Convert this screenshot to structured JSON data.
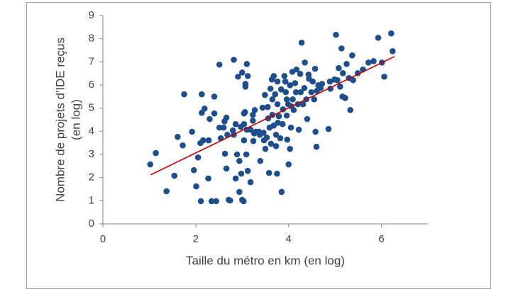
{
  "chart_data": {
    "type": "scatter",
    "xlabel": "Taille du métro en km (en log)",
    "ylabel": [
      "Nombre de projets d'IDE reçus",
      "(en log)"
    ],
    "xlim": [
      0,
      7
    ],
    "xticks": [
      0,
      2,
      4,
      6
    ],
    "ylim": [
      0,
      9
    ],
    "yticks": [
      0,
      1,
      2,
      3,
      4,
      5,
      6,
      7,
      8,
      9
    ],
    "grid": false,
    "color": "#1f4e8c",
    "x": [
      1.02,
      1.14,
      1.37,
      1.54,
      1.61,
      1.72,
      1.75,
      1.92,
      1.96,
      2.01,
      2.05,
      2.11,
      2.13,
      2.13,
      2.19,
      2.1,
      2.16,
      2.28,
      2.27,
      2.34,
      2.4,
      2.3,
      2.4,
      2.44,
      2.51,
      2.51,
      2.54,
      2.6,
      2.62,
      2.63,
      2.66,
      2.66,
      2.68,
      2.71,
      2.74,
      2.8,
      2.82,
      2.82,
      2.86,
      2.86,
      2.89,
      2.91,
      2.94,
      2.94,
      2.97,
      2.98,
      3.0,
      3.0,
      3.03,
      3.04,
      3.04,
      3.04,
      3.06,
      3.07,
      3.07,
      3.1,
      3.12,
      3.09,
      3.1,
      3.12,
      3.18,
      3.18,
      3.23,
      3.23,
      3.24,
      3.26,
      3.27,
      3.3,
      3.36,
      3.38,
      3.39,
      3.44,
      3.46,
      3.47,
      3.49,
      3.5,
      3.53,
      3.55,
      3.56,
      3.58,
      3.59,
      3.61,
      3.62,
      3.64,
      3.65,
      3.65,
      3.68,
      3.68,
      3.71,
      3.73,
      3.73,
      3.75,
      3.76,
      3.76,
      3.77,
      3.79,
      3.82,
      3.84,
      3.85,
      3.87,
      3.88,
      3.91,
      3.93,
      3.94,
      3.96,
      3.96,
      3.97,
      3.99,
      4.0,
      4.03,
      4.03,
      4.05,
      4.06,
      4.08,
      4.09,
      4.11,
      4.14,
      4.16,
      4.17,
      4.2,
      4.22,
      4.25,
      4.26,
      4.28,
      4.31,
      4.34,
      4.35,
      4.38,
      4.4,
      4.43,
      4.44,
      4.49,
      4.52,
      4.55,
      4.57,
      4.58,
      4.6,
      4.61,
      4.64,
      4.69,
      4.72,
      4.86,
      4.89,
      4.9,
      4.99,
      5.02,
      5.05,
      5.08,
      5.11,
      5.16,
      5.17,
      5.22,
      5.14,
      5.25,
      5.3,
      5.33,
      5.37,
      5.39,
      5.49,
      5.6,
      5.72,
      5.83,
      5.93,
      6.01,
      6.06,
      6.21,
      6.24
    ],
    "y": [
      2.57,
      3.06,
      1.41,
      2.08,
      3.76,
      3.39,
      5.6,
      3.98,
      2.32,
      1.62,
      2.87,
      0.98,
      5.6,
      4.8,
      4.98,
      3.49,
      3.61,
      3.61,
      1.96,
      0.98,
      5.5,
      4.53,
      4.77,
      0.98,
      6.88,
      4.16,
      3.7,
      4.16,
      4.43,
      3.03,
      4.59,
      2.39,
      3.85,
      1.04,
      1.01,
      4.04,
      3.85,
      7.09,
      4.31,
      1.96,
      3.0,
      6.36,
      2.72,
      1.38,
      4.19,
      2.17,
      1.04,
      6.54,
      0.98,
      3.61,
      4.31,
      4.77,
      4.83,
      5.93,
      6.05,
      6.91,
      6.39,
      3.0,
      4.07,
      2.29,
      1.8,
      4.07,
      4.71,
      4.46,
      3.58,
      3.91,
      4.92,
      3.98,
      3.98,
      3.85,
      2.72,
      5.02,
      3.94,
      3.61,
      5.57,
      3.24,
      3.73,
      5.05,
      4.56,
      2.2,
      4.16,
      5.84,
      3.46,
      6.24,
      5.38,
      4.71,
      4.25,
      6.39,
      5.6,
      3.85,
      3.36,
      2.17,
      6.15,
      5.17,
      4.37,
      4.65,
      3.7,
      5.81,
      1.38,
      4.31,
      4.95,
      6.39,
      6.15,
      5.69,
      5.38,
      4.68,
      3.64,
      5.17,
      2.57,
      5.99,
      3.24,
      4.16,
      5.08,
      6.57,
      5.38,
      4.92,
      6.08,
      5.69,
      6.67,
      5.17,
      4.07,
      6.48,
      5.69,
      7.83,
      5.17,
      5.87,
      6.97,
      5.38,
      4.53,
      6.45,
      6.27,
      5.69,
      6.15,
      5.38,
      6.7,
      3.98,
      3.33,
      5.75,
      5.99,
      5.87,
      6.05,
      4.1,
      6.15,
      5.84,
      6.24,
      8.17,
      6.21,
      6.73,
      5.93,
      5.5,
      6.51,
      5.44,
      7.58,
      6.91,
      6.3,
      4.92,
      7.28,
      6.21,
      6.51,
      6.67,
      6.97,
      7.03,
      8.04,
      6.97,
      6.36,
      8.23,
      7.46
    ],
    "trendline": {
      "x": [
        1.03,
        6.28
      ],
      "y": [
        2.12,
        7.23
      ],
      "color": "#c00000"
    }
  }
}
